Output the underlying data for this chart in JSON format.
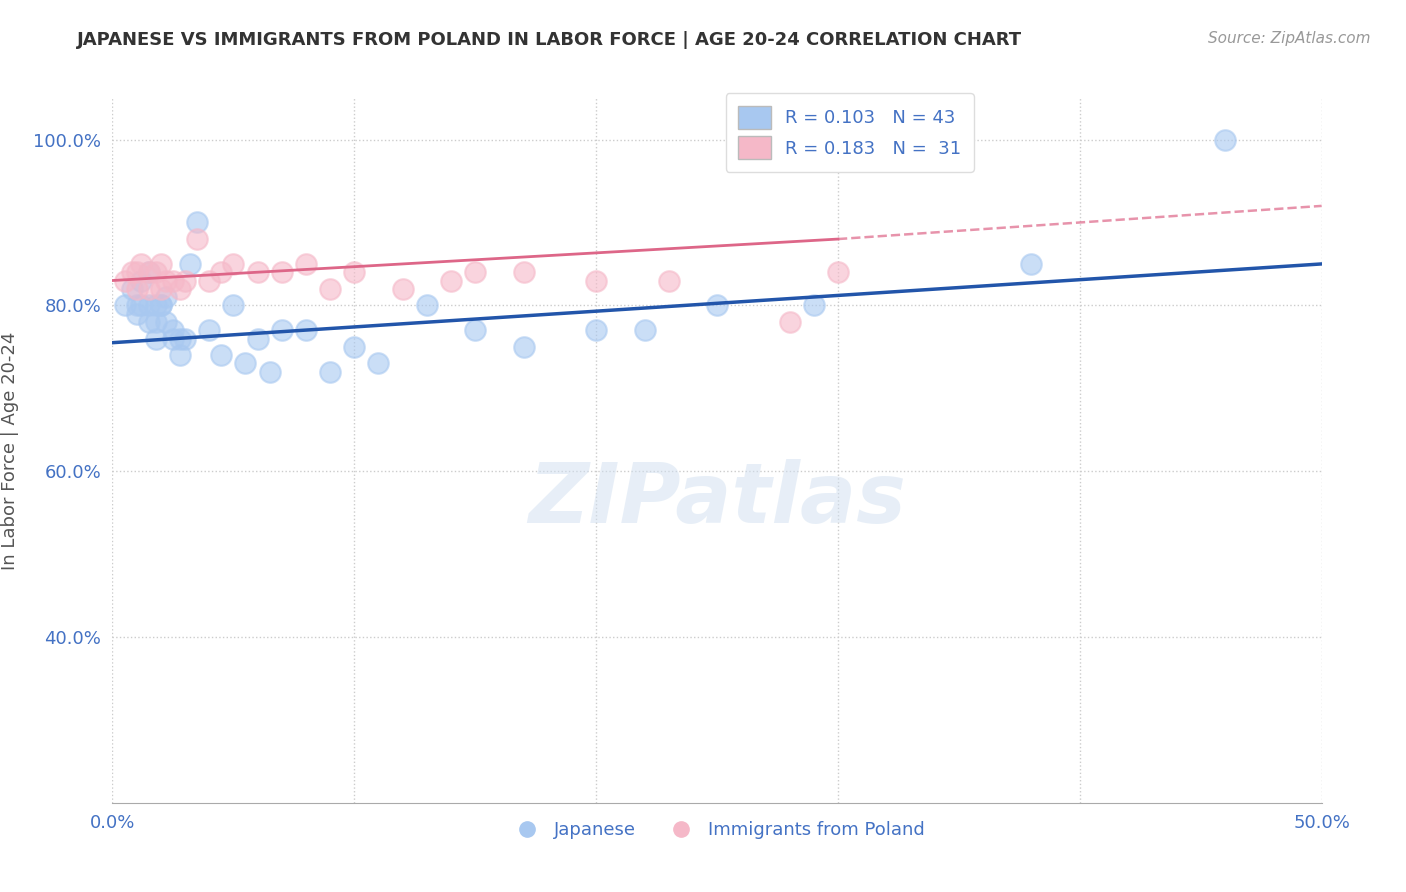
{
  "title": "JAPANESE VS IMMIGRANTS FROM POLAND IN LABOR FORCE | AGE 20-24 CORRELATION CHART",
  "source": "Source: ZipAtlas.com",
  "ylabel": "In Labor Force | Age 20-24",
  "xlim": [
    0.0,
    0.5
  ],
  "ylim": [
    0.2,
    1.05
  ],
  "xtick_positions": [
    0.0,
    0.1,
    0.2,
    0.3,
    0.4,
    0.5
  ],
  "xticklabels": [
    "0.0%",
    "",
    "",
    "",
    "",
    "50.0%"
  ],
  "ytick_positions": [
    0.4,
    0.6,
    0.8,
    1.0
  ],
  "yticklabels": [
    "40.0%",
    "60.0%",
    "80.0%",
    "100.0%"
  ],
  "R_blue": 0.103,
  "N_blue": 43,
  "R_pink": 0.183,
  "N_pink": 31,
  "watermark": "ZIPatlas",
  "blue_color": "#A8C8F0",
  "pink_color": "#F5B8C8",
  "line_blue": "#2255AA",
  "line_pink": "#DD6688",
  "text_color": "#4472C4",
  "title_color": "#333333",
  "grid_color": "#CCCCCC",
  "japanese_x": [
    0.005,
    0.008,
    0.01,
    0.01,
    0.012,
    0.012,
    0.015,
    0.015,
    0.015,
    0.018,
    0.018,
    0.018,
    0.02,
    0.02,
    0.022,
    0.022,
    0.025,
    0.025,
    0.028,
    0.028,
    0.03,
    0.032,
    0.035,
    0.04,
    0.045,
    0.05,
    0.055,
    0.06,
    0.065,
    0.07,
    0.08,
    0.09,
    0.1,
    0.11,
    0.13,
    0.15,
    0.17,
    0.2,
    0.22,
    0.25,
    0.29,
    0.38,
    0.46
  ],
  "japanese_y": [
    0.8,
    0.82,
    0.8,
    0.79,
    0.83,
    0.8,
    0.84,
    0.8,
    0.78,
    0.8,
    0.76,
    0.78,
    0.8,
    0.8,
    0.78,
    0.81,
    0.76,
    0.77,
    0.74,
    0.76,
    0.76,
    0.85,
    0.9,
    0.77,
    0.74,
    0.8,
    0.73,
    0.76,
    0.72,
    0.77,
    0.77,
    0.72,
    0.75,
    0.73,
    0.8,
    0.77,
    0.75,
    0.77,
    0.77,
    0.8,
    0.8,
    0.85,
    1.0
  ],
  "poland_x": [
    0.005,
    0.008,
    0.01,
    0.01,
    0.012,
    0.015,
    0.015,
    0.018,
    0.02,
    0.02,
    0.022,
    0.025,
    0.028,
    0.03,
    0.035,
    0.04,
    0.045,
    0.05,
    0.06,
    0.07,
    0.08,
    0.09,
    0.1,
    0.12,
    0.14,
    0.15,
    0.17,
    0.2,
    0.23,
    0.28,
    0.3
  ],
  "poland_y": [
    0.83,
    0.84,
    0.84,
    0.82,
    0.85,
    0.84,
    0.82,
    0.84,
    0.82,
    0.85,
    0.83,
    0.83,
    0.82,
    0.83,
    0.88,
    0.83,
    0.84,
    0.85,
    0.84,
    0.84,
    0.85,
    0.82,
    0.84,
    0.82,
    0.83,
    0.84,
    0.84,
    0.83,
    0.83,
    0.78,
    0.84
  ],
  "blue_line_y0": 0.755,
  "blue_line_y1": 0.85,
  "pink_line_x0": 0.0,
  "pink_line_x1": 0.3,
  "pink_line_x1_dash": 0.5,
  "pink_line_y0": 0.83,
  "pink_line_y1": 0.88,
  "pink_line_y1_dash": 0.92
}
